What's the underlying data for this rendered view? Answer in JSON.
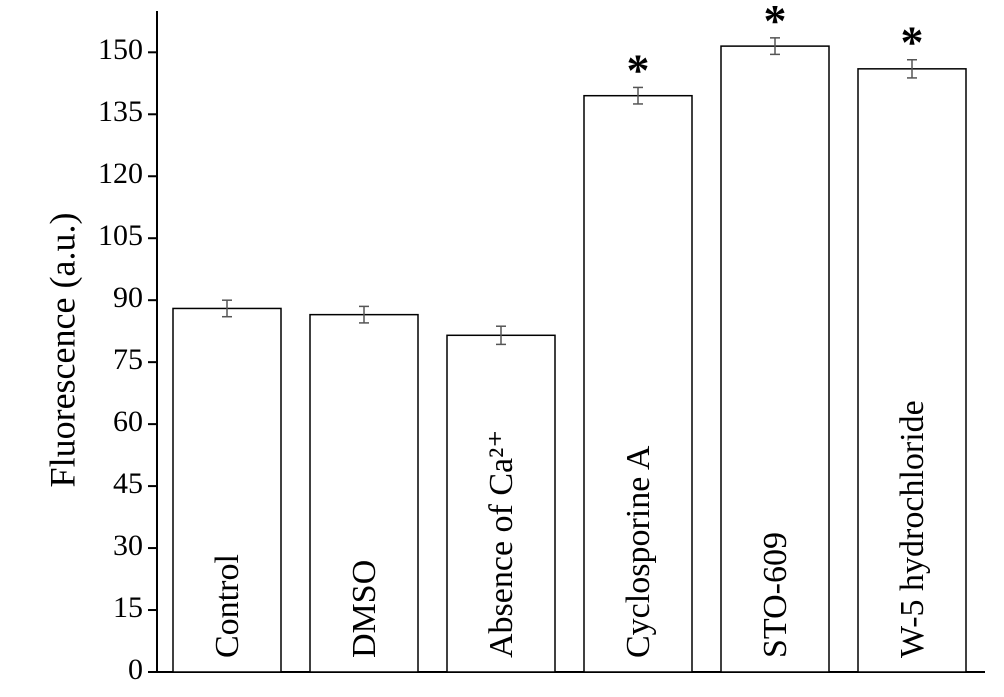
{
  "chart_data": {
    "type": "bar",
    "y_label": "Fluorescence (a.u.)",
    "categories": [
      "Control",
      "DMSO",
      "Absence of Ca²⁺",
      "Cyclosporine A",
      "STO-609",
      "W-5 hydrochloride"
    ],
    "values": [
      88,
      86.5,
      81.5,
      139.5,
      151.5,
      146
    ],
    "errors": [
      2,
      2,
      2.2,
      2,
      2,
      2.2
    ],
    "significance": [
      null,
      null,
      null,
      "*",
      "*",
      "*"
    ],
    "color": "#ffffff",
    "edge_color": "#000000",
    "error_color": "#555555",
    "ylim": [
      0,
      160
    ],
    "yticks": [
      0,
      15,
      30,
      45,
      60,
      75,
      90,
      105,
      120,
      135,
      150
    ],
    "grid": false
  }
}
